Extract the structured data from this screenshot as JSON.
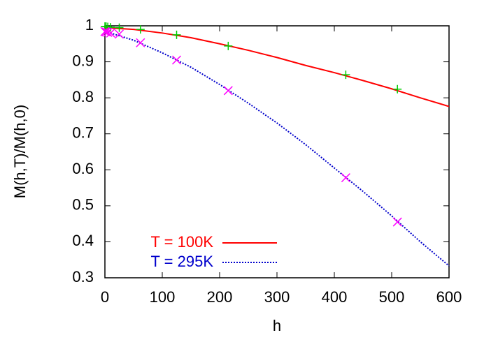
{
  "chart_data": {
    "type": "line",
    "x_label": "h",
    "y_label": "M(h,T)/M(h,0)",
    "xlim": [
      0,
      600
    ],
    "xticks": [
      0,
      100,
      200,
      300,
      400,
      500,
      600
    ],
    "ylim": [
      0.3,
      1
    ],
    "yticks": [
      0.3,
      0.4,
      0.5,
      0.6,
      0.7,
      0.8,
      0.9,
      1
    ],
    "legend": "lower left",
    "series": [
      {
        "name": "T = 100K",
        "color": "#ff0000",
        "style": "solid",
        "x": [
          0,
          50,
          100,
          150,
          200,
          250,
          300,
          350,
          400,
          450,
          500,
          550,
          600
        ],
        "values": [
          0.995,
          0.99,
          0.98,
          0.967,
          0.95,
          0.932,
          0.912,
          0.89,
          0.87,
          0.848,
          0.825,
          0.8,
          0.776
        ]
      },
      {
        "name": "T = 295K",
        "color": "#0000cc",
        "style": "dotted",
        "x": [
          0,
          50,
          100,
          150,
          200,
          250,
          300,
          350,
          400,
          450,
          500,
          550,
          600
        ],
        "values": [
          0.985,
          0.96,
          0.925,
          0.885,
          0.837,
          0.785,
          0.73,
          0.67,
          0.605,
          0.54,
          0.472,
          0.4,
          0.333
        ]
      },
      {
        "color": "#00cc00",
        "marker": "plus",
        "x": [
          0,
          2,
          5,
          10,
          25,
          62,
          125,
          215,
          420,
          510
        ],
        "values": [
          0.998,
          0.998,
          0.997,
          0.996,
          0.995,
          0.99,
          0.975,
          0.944,
          0.864,
          0.824
        ]
      },
      {
        "color": "#ff00ff",
        "marker": "cross",
        "x": [
          0,
          2,
          5,
          10,
          25,
          62,
          125,
          215,
          420,
          510
        ],
        "values": [
          0.984,
          0.983,
          0.982,
          0.98,
          0.977,
          0.953,
          0.905,
          0.82,
          0.578,
          0.455
        ]
      }
    ]
  }
}
